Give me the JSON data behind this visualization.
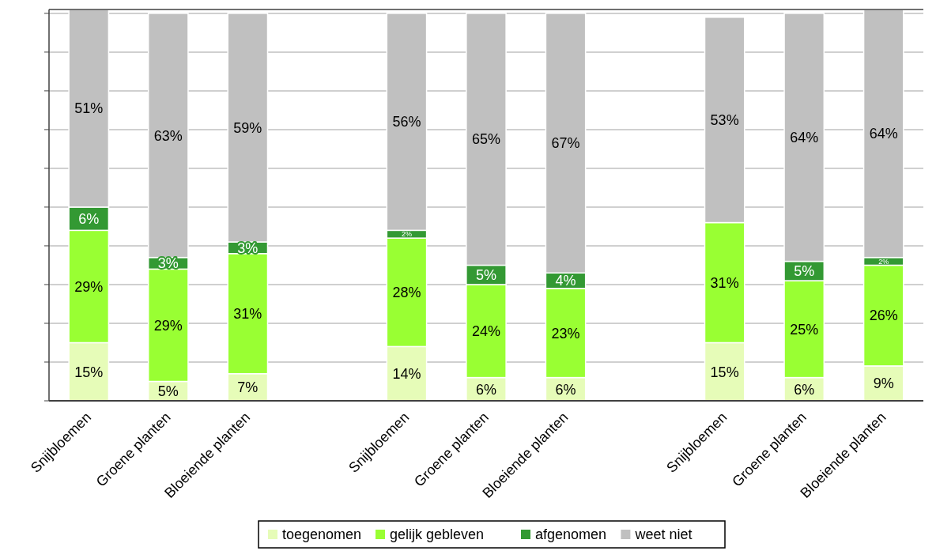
{
  "chart_data": {
    "type": "bar",
    "stacked": true,
    "categories": [
      "Snijbloemen",
      "Groene planten",
      "Bloeiende planten",
      null,
      "Snijbloemen",
      "Groene planten",
      "Bloeiende planten",
      null,
      "Snijbloemen",
      "Groene planten",
      "Bloeiende planten"
    ],
    "series": [
      {
        "name": "toegenomen",
        "color": "#e6fcb8",
        "values": [
          15,
          5,
          7,
          null,
          14,
          6,
          6,
          null,
          15,
          6,
          9
        ],
        "value_labels": [
          "15%",
          "5%",
          "7%",
          null,
          "14%",
          "6%",
          "6%",
          null,
          "15%",
          "6%",
          "9%"
        ]
      },
      {
        "name": "gelijk gebleven",
        "color": "#99ff33",
        "values": [
          29,
          29,
          31,
          null,
          28,
          24,
          23,
          null,
          31,
          25,
          26
        ],
        "value_labels": [
          "29%",
          "29%",
          "31%",
          null,
          "28%",
          "24%",
          "23%",
          null,
          "31%",
          "25%",
          "26%"
        ]
      },
      {
        "name": "afgenomen",
        "color": "#339933",
        "values": [
          6,
          3,
          3,
          null,
          2,
          5,
          4,
          null,
          null,
          5,
          2
        ],
        "value_labels": [
          "6%",
          "3%",
          "3%",
          null,
          "2%",
          "5%",
          "4%",
          null,
          null,
          "5%",
          "2%"
        ]
      },
      {
        "name": "weet niet",
        "color": "#c0c0c0",
        "values": [
          51,
          63,
          59,
          null,
          56,
          65,
          67,
          null,
          53,
          64,
          64
        ],
        "value_labels": [
          "51%",
          "63%",
          "59%",
          null,
          "56%",
          "65%",
          "67%",
          null,
          "53%",
          "64%",
          "64%"
        ]
      }
    ],
    "ylim": [
      0,
      101
    ],
    "yticks": [
      {
        "value": 0,
        "label": null
      },
      {
        "value": 10,
        "label": null
      },
      {
        "value": 20,
        "label": null
      },
      {
        "value": 30,
        "label": null
      },
      {
        "value": 40,
        "label": null
      },
      {
        "value": 50,
        "label": null
      },
      {
        "value": 60,
        "label": null
      },
      {
        "value": 70,
        "label": null
      },
      {
        "value": 80,
        "label": null
      },
      {
        "value": 90,
        "label": null
      },
      {
        "value": 100,
        "label": null
      }
    ],
    "tick_labels": "x",
    "grid": "y",
    "legend": "bottom"
  }
}
